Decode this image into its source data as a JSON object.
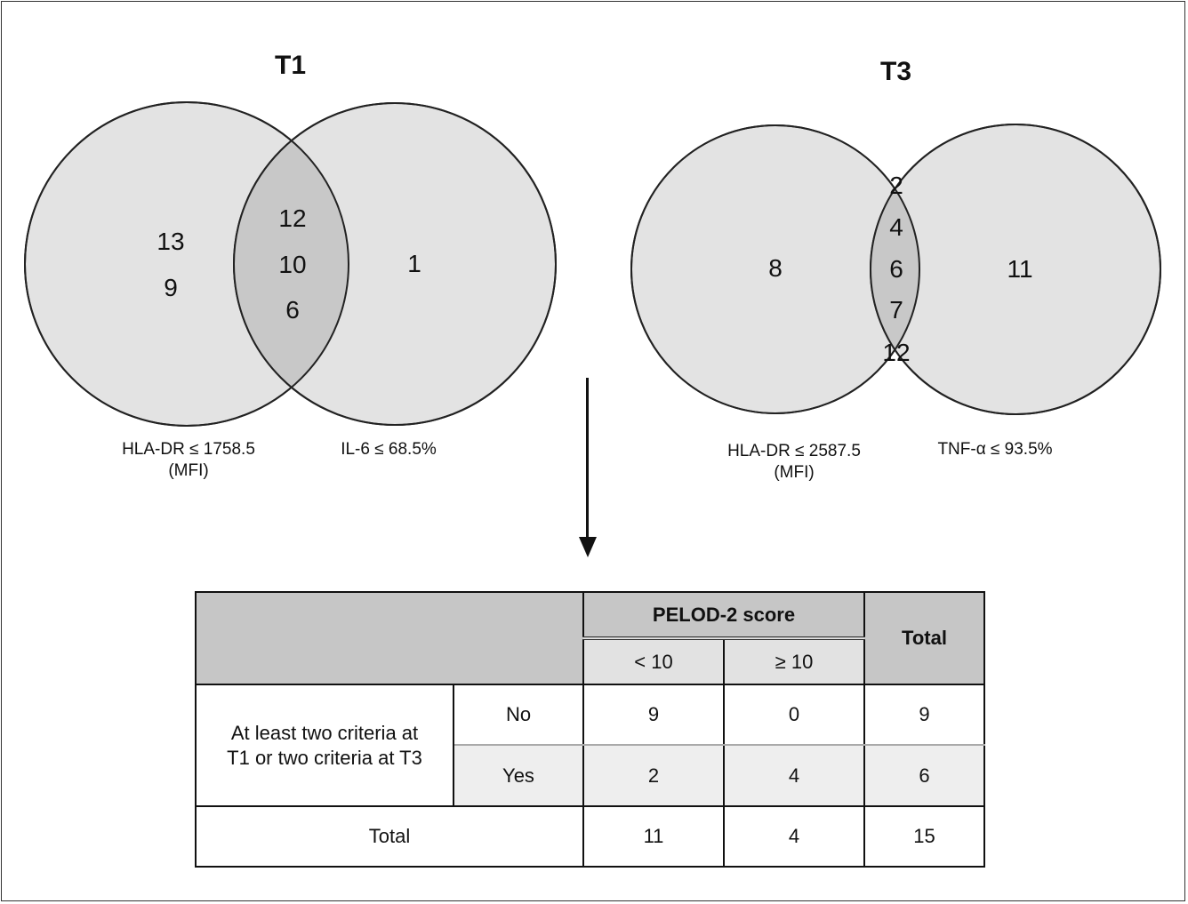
{
  "venn_t1": {
    "title": "T1",
    "left_only": [
      "13",
      "9"
    ],
    "overlap": [
      "12",
      "10",
      "6"
    ],
    "right_only": [
      "1"
    ],
    "left_label": [
      "HLA-DR ≤ 1758.5",
      "(MFI)"
    ],
    "right_label": "IL-6 ≤ 68.5%"
  },
  "venn_t3": {
    "title": "T3",
    "left_only": [
      "8"
    ],
    "overlap": [
      "2",
      "4",
      "6",
      "7",
      "12"
    ],
    "right_only": [
      "11"
    ],
    "left_label": [
      "HLA-DR ≤ 2587.5",
      "(MFI)"
    ],
    "right_label": "TNF-α ≤ 93.5%"
  },
  "table": {
    "group_header": "PELOD-2 score",
    "sub_headers": [
      "< 10",
      "≥ 10"
    ],
    "total_header": "Total",
    "row_group_label": [
      "At least two criteria at",
      "T1 or two criteria at T3"
    ],
    "rows": [
      {
        "label": "No",
        "values": [
          "9",
          "0",
          "9"
        ]
      },
      {
        "label": "Yes",
        "values": [
          "2",
          "4",
          "6"
        ]
      }
    ],
    "total_row": {
      "label": "Total",
      "values": [
        "11",
        "4",
        "15"
      ]
    }
  },
  "colors": {
    "circle_fill": "#e3e3e3",
    "overlap_fill": "#c8c8c8",
    "header_fill": "#c6c6c6"
  }
}
